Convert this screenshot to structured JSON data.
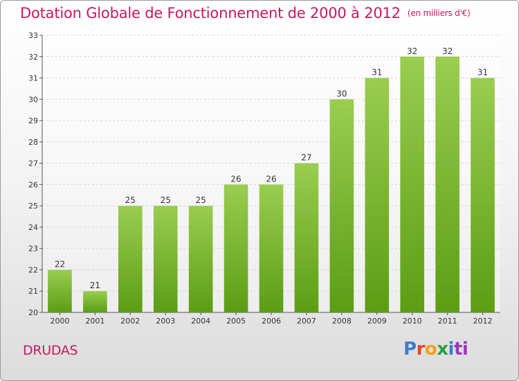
{
  "header": {
    "title": "Dotation Globale de Fonctionnement de 2000 à 2012",
    "subtitle": "(en milliers d'€)"
  },
  "commune": "DRUDAS",
  "logo": {
    "letters": [
      "P",
      "r",
      "o",
      "x",
      "i",
      "ti"
    ]
  },
  "colors": {
    "title": "#c8185e",
    "bar_top": "#9acd50",
    "bar_bottom": "#5c9d14"
  },
  "chart_data": {
    "type": "bar",
    "title": "Dotation Globale de Fonctionnement de 2000 à 2012",
    "subtitle": "(en milliers d'€)",
    "categories": [
      "2000",
      "2001",
      "2002",
      "2003",
      "2004",
      "2005",
      "2006",
      "2007",
      "2008",
      "2009",
      "2010",
      "2011",
      "2012"
    ],
    "values": [
      22,
      21,
      25,
      25,
      25,
      26,
      26,
      27,
      30,
      31,
      32,
      32,
      31
    ],
    "ylim": [
      20,
      33
    ],
    "yticks": [
      20,
      21,
      22,
      23,
      24,
      25,
      26,
      27,
      28,
      29,
      30,
      31,
      32,
      33
    ],
    "grid": true,
    "legend": "none",
    "data_labels": true
  }
}
